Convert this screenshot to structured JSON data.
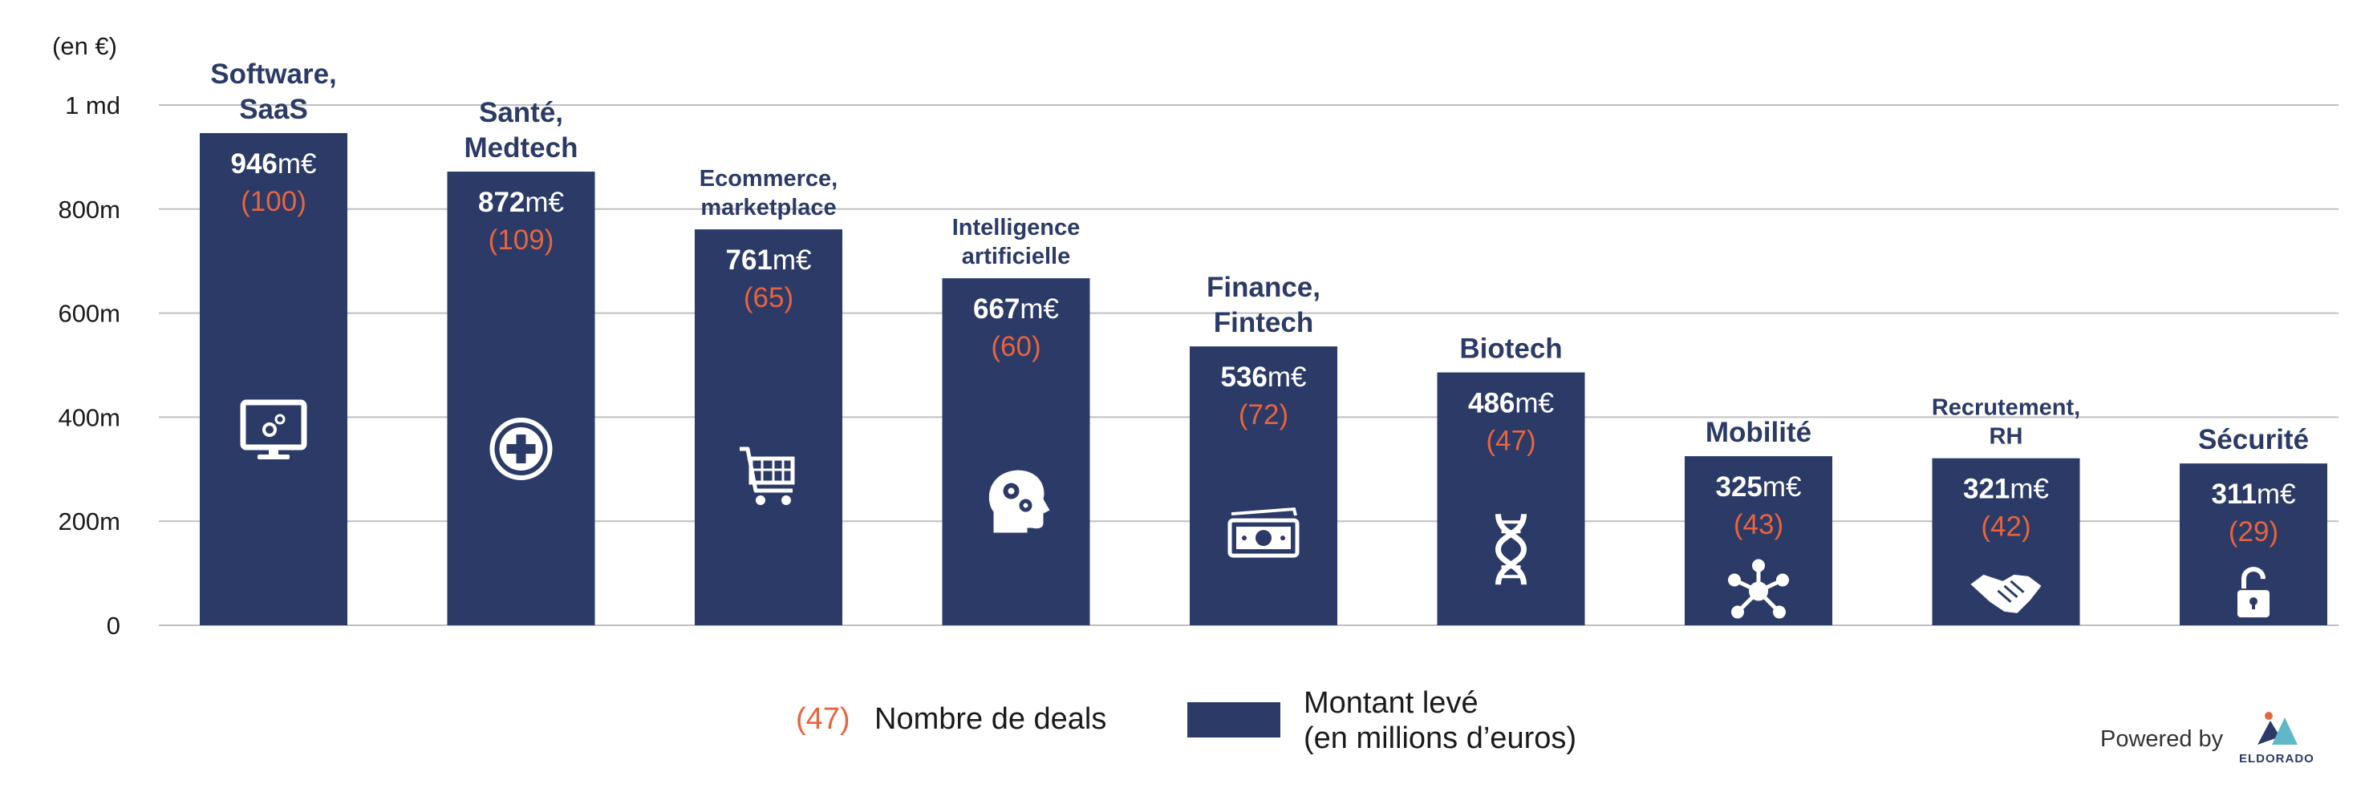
{
  "chart_data": {
    "type": "bar",
    "unit_label": "(en €)",
    "y_ticks": [
      {
        "value": 0,
        "label": "0"
      },
      {
        "value": 200,
        "label": "200m"
      },
      {
        "value": 400,
        "label": "400m"
      },
      {
        "value": 600,
        "label": "600m"
      },
      {
        "value": 800,
        "label": "800m"
      },
      {
        "value": 1000,
        "label": "1 md"
      }
    ],
    "ylim": [
      0,
      1000
    ],
    "grid": true,
    "categories": [
      {
        "name_lines": [
          "Software,",
          "SaaS"
        ],
        "value": 946,
        "value_label": "946",
        "deals": 100,
        "deals_label": "(100)",
        "icon": "monitor-gears-icon",
        "name_size": "large"
      },
      {
        "name_lines": [
          "Santé,",
          "Medtech"
        ],
        "value": 872,
        "value_label": "872",
        "deals": 109,
        "deals_label": "(109)",
        "icon": "medical-cross-icon",
        "name_size": "large"
      },
      {
        "name_lines": [
          "Ecommerce,",
          "marketplace"
        ],
        "value": 761,
        "value_label": "761",
        "deals": 65,
        "deals_label": "(65)",
        "icon": "shopping-cart-icon",
        "name_size": "small"
      },
      {
        "name_lines": [
          "Intelligence",
          "artificielle"
        ],
        "value": 667,
        "value_label": "667",
        "deals": 60,
        "deals_label": "(60)",
        "icon": "brain-gears-icon",
        "name_size": "small"
      },
      {
        "name_lines": [
          "Finance,",
          "Fintech"
        ],
        "value": 536,
        "value_label": "536",
        "deals": 72,
        "deals_label": "(72)",
        "icon": "money-icon",
        "name_size": "large"
      },
      {
        "name_lines": [
          "Biotech"
        ],
        "value": 486,
        "value_label": "486",
        "deals": 47,
        "deals_label": "(47)",
        "icon": "dna-icon",
        "name_size": "large"
      },
      {
        "name_lines": [
          "Mobilité"
        ],
        "value": 325,
        "value_label": "325",
        "deals": 43,
        "deals_label": "(43)",
        "icon": "network-hub-icon",
        "name_size": "large"
      },
      {
        "name_lines": [
          "Recrutement,",
          "RH"
        ],
        "value": 321,
        "value_label": "321",
        "deals": 42,
        "deals_label": "(42)",
        "icon": "handshake-icon",
        "name_size": "small"
      },
      {
        "name_lines": [
          "Sécurité"
        ],
        "value": 311,
        "value_label": "311",
        "deals": 29,
        "deals_label": "(29)",
        "icon": "padlock-icon",
        "name_size": "large"
      }
    ],
    "value_suffix": "m€",
    "colors": {
      "bar": "#2b3a67",
      "deals": "#e8643c",
      "label": "#2b3a67",
      "grid": "#c0c0c0",
      "axis_text": "#1a1a1a"
    },
    "legend": {
      "deals_sample": "(47)",
      "deals_label": "Nombre de deals",
      "amount_label_line1": "Montant levé",
      "amount_label_line2": "(en millions d’euros)"
    }
  },
  "footer": {
    "powered_by": "Powered by",
    "brand": "ELDORADO"
  }
}
